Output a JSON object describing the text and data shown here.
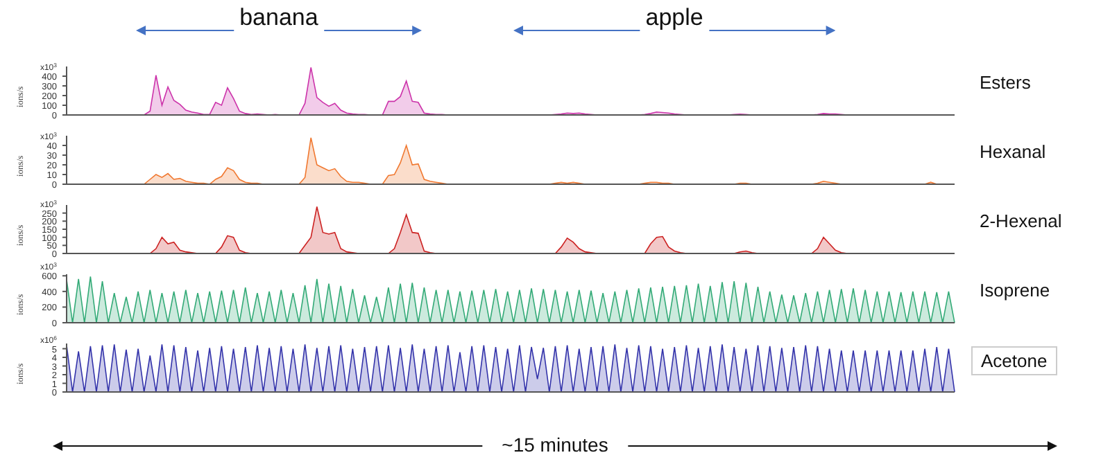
{
  "chart_data": [
    {
      "type": "area",
      "ylabel": "ions/s",
      "annotations": [
        "banana",
        "apple",
        "x10$^{3}$"
      ],
      "tick_labels": "y",
      "ylim": [
        0,
        500
      ],
      "yticks": [
        0,
        100,
        200,
        300,
        400
      ],
      "categories": [
        null,
        null,
        null,
        null,
        null,
        null,
        null,
        null,
        null,
        null,
        null,
        null,
        null,
        null,
        null,
        null,
        null,
        null,
        null,
        null,
        null,
        null,
        null,
        null,
        null,
        null,
        null,
        null,
        null,
        null,
        null,
        null,
        null,
        null,
        null,
        null,
        null,
        null,
        null,
        null,
        null,
        null,
        null,
        null,
        null,
        null,
        null,
        null,
        null,
        null,
        null,
        null,
        null,
        null,
        null,
        null,
        null,
        null,
        null,
        null,
        null,
        null,
        null,
        null,
        null,
        null,
        null,
        null,
        null,
        null,
        null,
        null,
        null,
        null,
        null,
        null,
        null,
        null,
        null,
        null,
        null,
        null,
        null,
        null,
        null,
        null,
        null,
        null,
        null,
        null,
        null,
        null,
        null,
        null,
        null,
        null,
        null,
        null,
        null,
        null,
        null,
        null,
        null,
        null,
        null,
        null,
        null,
        null,
        null,
        null,
        null,
        null,
        null,
        null,
        null,
        null,
        null,
        null,
        null,
        null,
        null,
        null,
        null,
        null,
        null,
        null,
        null,
        null,
        null,
        null,
        null,
        null,
        null,
        null,
        null,
        null,
        null,
        null,
        null,
        null,
        null,
        null,
        null,
        null,
        null,
        null,
        null,
        null,
        null,
        null
      ],
      "series": [
        {
          "name": "Esters",
          "color": "#cc33aa",
          "values": [
            0,
            0,
            0,
            0,
            0,
            0,
            0,
            0,
            0,
            0,
            0,
            0,
            0,
            0,
            40,
            410,
            100,
            290,
            150,
            110,
            50,
            30,
            20,
            5,
            5,
            130,
            100,
            280,
            170,
            40,
            15,
            5,
            10,
            5,
            0,
            5,
            0,
            0,
            0,
            0,
            120,
            490,
            180,
            130,
            90,
            120,
            50,
            20,
            10,
            5,
            5,
            0,
            0,
            0,
            140,
            140,
            190,
            350,
            140,
            130,
            20,
            10,
            5,
            5,
            0,
            0,
            0,
            0,
            0,
            0,
            0,
            0,
            0,
            0,
            0,
            0,
            0,
            0,
            0,
            0,
            0,
            0,
            5,
            10,
            20,
            15,
            20,
            10,
            5,
            0,
            0,
            0,
            0,
            0,
            0,
            0,
            0,
            5,
            15,
            30,
            25,
            20,
            10,
            5,
            0,
            0,
            0,
            0,
            0,
            0,
            0,
            0,
            5,
            8,
            5,
            0,
            0,
            0,
            0,
            0,
            0,
            0,
            0,
            0,
            0,
            0,
            5,
            15,
            10,
            10,
            5,
            0,
            0,
            0,
            0,
            0,
            0,
            0,
            0,
            0,
            0,
            0,
            0,
            0,
            0,
            0,
            0,
            0,
            0,
            0
          ]
        }
      ]
    },
    {
      "type": "area",
      "ylabel": "ions/s",
      "annotations": [
        "x10$^{3}$"
      ],
      "tick_labels": "y",
      "ylim": [
        0,
        50
      ],
      "yticks": [
        0,
        10,
        20,
        30,
        40
      ],
      "categories": [
        null,
        null,
        null,
        null,
        null,
        null,
        null,
        null,
        null,
        null,
        null,
        null,
        null,
        null,
        null,
        null,
        null,
        null,
        null,
        null,
        null,
        null,
        null,
        null,
        null,
        null,
        null,
        null,
        null,
        null,
        null,
        null,
        null,
        null,
        null,
        null,
        null,
        null,
        null,
        null,
        null,
        null,
        null,
        null,
        null,
        null,
        null,
        null,
        null,
        null,
        null,
        null,
        null,
        null,
        null,
        null,
        null,
        null,
        null,
        null,
        null,
        null,
        null,
        null,
        null,
        null,
        null,
        null,
        null,
        null,
        null,
        null,
        null,
        null,
        null,
        null,
        null,
        null,
        null,
        null,
        null,
        null,
        null,
        null,
        null,
        null,
        null,
        null,
        null,
        null,
        null,
        null,
        null,
        null,
        null,
        null,
        null,
        null,
        null,
        null,
        null,
        null,
        null,
        null,
        null,
        null,
        null,
        null,
        null,
        null,
        null,
        null,
        null,
        null,
        null,
        null,
        null,
        null,
        null,
        null,
        null,
        null,
        null,
        null,
        null,
        null,
        null,
        null,
        null,
        null,
        null,
        null,
        null,
        null,
        null,
        null,
        null,
        null,
        null,
        null,
        null,
        null,
        null,
        null,
        null,
        null,
        null,
        null,
        null,
        null
      ],
      "series": [
        {
          "name": "Hexanal",
          "color": "#f07830",
          "values": [
            0,
            0,
            0,
            0,
            0,
            0,
            0,
            0,
            0,
            0,
            0,
            0,
            0,
            0,
            5,
            10,
            7,
            11,
            5,
            6,
            3,
            2,
            1,
            1,
            0,
            5,
            8,
            17,
            14,
            5,
            2,
            1,
            1,
            0,
            0,
            0,
            0,
            0,
            0,
            0,
            7,
            48,
            20,
            17,
            14,
            16,
            8,
            3,
            2,
            2,
            1,
            0,
            0,
            0,
            9,
            10,
            22,
            40,
            20,
            21,
            5,
            3,
            2,
            1,
            0,
            0,
            0,
            0,
            0,
            0,
            0,
            0,
            0,
            0,
            0,
            0,
            0,
            0,
            0,
            0,
            0,
            0,
            1,
            2,
            1,
            2,
            1,
            0,
            0,
            0,
            0,
            0,
            0,
            0,
            0,
            0,
            0,
            1,
            2,
            2,
            1,
            1,
            0,
            0,
            0,
            0,
            0,
            0,
            0,
            0,
            0,
            0,
            0,
            1,
            1,
            0,
            0,
            0,
            0,
            0,
            0,
            0,
            0,
            0,
            0,
            0,
            1,
            3,
            2,
            1,
            0,
            0,
            0,
            0,
            0,
            0,
            0,
            0,
            0,
            0,
            0,
            0,
            0,
            0,
            0,
            2,
            0,
            0,
            0,
            0
          ]
        }
      ]
    },
    {
      "type": "area",
      "ylabel": "ions/s",
      "annotations": [
        "x10$^{3}$"
      ],
      "tick_labels": "y",
      "ylim": [
        0,
        300
      ],
      "yticks": [
        0,
        50,
        100,
        150,
        200,
        250
      ],
      "categories": [
        null,
        null,
        null,
        null,
        null,
        null,
        null,
        null,
        null,
        null,
        null,
        null,
        null,
        null,
        null,
        null,
        null,
        null,
        null,
        null,
        null,
        null,
        null,
        null,
        null,
        null,
        null,
        null,
        null,
        null,
        null,
        null,
        null,
        null,
        null,
        null,
        null,
        null,
        null,
        null,
        null,
        null,
        null,
        null,
        null,
        null,
        null,
        null,
        null,
        null,
        null,
        null,
        null,
        null,
        null,
        null,
        null,
        null,
        null,
        null,
        null,
        null,
        null,
        null,
        null,
        null,
        null,
        null,
        null,
        null,
        null,
        null,
        null,
        null,
        null,
        null,
        null,
        null,
        null,
        null,
        null,
        null,
        null,
        null,
        null,
        null,
        null,
        null,
        null,
        null,
        null,
        null,
        null,
        null,
        null,
        null,
        null,
        null,
        null,
        null,
        null,
        null,
        null,
        null,
        null,
        null,
        null,
        null,
        null,
        null,
        null,
        null,
        null,
        null,
        null,
        null,
        null,
        null,
        null,
        null,
        null,
        null,
        null,
        null,
        null,
        null,
        null,
        null,
        null,
        null,
        null,
        null,
        null,
        null,
        null,
        null,
        null,
        null,
        null,
        null,
        null,
        null,
        null,
        null,
        null,
        null,
        null,
        null,
        null,
        null
      ],
      "series": [
        {
          "name": "2-Hexenal",
          "color": "#cc2222",
          "values": [
            0,
            0,
            0,
            0,
            0,
            0,
            0,
            0,
            0,
            0,
            0,
            0,
            0,
            0,
            0,
            30,
            100,
            60,
            70,
            20,
            10,
            5,
            0,
            0,
            0,
            0,
            40,
            110,
            100,
            20,
            5,
            0,
            0,
            0,
            0,
            0,
            0,
            0,
            0,
            0,
            50,
            100,
            290,
            130,
            120,
            130,
            30,
            10,
            5,
            0,
            0,
            0,
            0,
            0,
            0,
            30,
            130,
            240,
            130,
            125,
            15,
            5,
            0,
            0,
            0,
            0,
            0,
            0,
            0,
            0,
            0,
            0,
            0,
            0,
            0,
            0,
            0,
            0,
            0,
            0,
            0,
            0,
            0,
            40,
            95,
            70,
            30,
            10,
            5,
            0,
            0,
            0,
            0,
            0,
            0,
            0,
            0,
            0,
            60,
            100,
            105,
            40,
            15,
            5,
            0,
            0,
            0,
            0,
            0,
            0,
            0,
            0,
            0,
            10,
            15,
            5,
            0,
            0,
            0,
            0,
            0,
            0,
            0,
            0,
            0,
            0,
            30,
            100,
            60,
            20,
            5,
            0,
            0,
            0,
            0,
            0,
            0,
            0,
            0,
            0,
            0,
            0,
            0,
            0,
            0,
            0,
            0,
            0,
            0,
            0
          ]
        }
      ]
    },
    {
      "type": "area",
      "ylabel": "ions/s",
      "annotations": [
        "x10$^{3}$"
      ],
      "tick_labels": "y",
      "ylim": [
        0,
        620
      ],
      "yticks": [
        0,
        200,
        400,
        600
      ],
      "categories": [
        null,
        null,
        null,
        null,
        null,
        null,
        null,
        null,
        null,
        null,
        null,
        null,
        null,
        null,
        null,
        null,
        null,
        null,
        null,
        null,
        null,
        null,
        null,
        null,
        null,
        null,
        null,
        null,
        null,
        null,
        null,
        null,
        null,
        null,
        null,
        null,
        null,
        null,
        null,
        null,
        null,
        null,
        null,
        null,
        null,
        null,
        null,
        null,
        null,
        null,
        null,
        null,
        null,
        null,
        null,
        null,
        null,
        null,
        null,
        null,
        null,
        null,
        null,
        null,
        null,
        null,
        null,
        null,
        null,
        null,
        null,
        null,
        null,
        null,
        null,
        null,
        null,
        null,
        null,
        null,
        null,
        null,
        null,
        null,
        null,
        null,
        null,
        null,
        null,
        null,
        null,
        null,
        null,
        null,
        null,
        null,
        null,
        null,
        null,
        null,
        null,
        null,
        null,
        null,
        null,
        null,
        null,
        null,
        null,
        null,
        null,
        null,
        null,
        null,
        null,
        null,
        null,
        null,
        null,
        null,
        null,
        null,
        null,
        null,
        null,
        null,
        null,
        null,
        null,
        null,
        null,
        null,
        null,
        null,
        null,
        null,
        null,
        null,
        null,
        null,
        null,
        null,
        null,
        null,
        null,
        null,
        null,
        null,
        null,
        null
      ],
      "series": [
        {
          "name": "Isoprene",
          "color": "#33aa77",
          "values": [
            550,
            0,
            560,
            0,
            590,
            0,
            530,
            0,
            380,
            0,
            330,
            0,
            400,
            0,
            420,
            0,
            380,
            0,
            400,
            0,
            420,
            0,
            380,
            0,
            400,
            0,
            410,
            0,
            420,
            0,
            450,
            0,
            380,
            0,
            400,
            0,
            420,
            0,
            380,
            0,
            480,
            0,
            560,
            0,
            500,
            0,
            470,
            0,
            430,
            0,
            350,
            0,
            330,
            0,
            450,
            0,
            500,
            0,
            510,
            0,
            450,
            0,
            420,
            0,
            420,
            0,
            400,
            0,
            410,
            0,
            420,
            0,
            430,
            0,
            400,
            0,
            420,
            0,
            440,
            0,
            430,
            0,
            420,
            0,
            400,
            0,
            420,
            0,
            410,
            0,
            380,
            0,
            400,
            0,
            420,
            0,
            440,
            0,
            450,
            0,
            460,
            0,
            470,
            0,
            480,
            0,
            500,
            0,
            470,
            0,
            520,
            0,
            530,
            0,
            510,
            0,
            460,
            0,
            400,
            0,
            360,
            0,
            350,
            0,
            380,
            0,
            400,
            0,
            420,
            0,
            430,
            0,
            440,
            0,
            420,
            0,
            400,
            0,
            400,
            0,
            390,
            0,
            400,
            0,
            400,
            0,
            390,
            0,
            400,
            0
          ]
        }
      ]
    },
    {
      "type": "area",
      "ylabel": "ions/s",
      "annotations": [
        "~15 minutes",
        "x10$^{6}$"
      ],
      "tick_labels": "y",
      "ylim": [
        0,
        5.6
      ],
      "yticks": [
        0,
        1,
        2,
        3,
        4,
        5
      ],
      "categories": [
        null,
        null,
        null,
        null,
        null,
        null,
        null,
        null,
        null,
        null,
        null,
        null,
        null,
        null,
        null,
        null,
        null,
        null,
        null,
        null,
        null,
        null,
        null,
        null,
        null,
        null,
        null,
        null,
        null,
        null,
        null,
        null,
        null,
        null,
        null,
        null,
        null,
        null,
        null,
        null,
        null,
        null,
        null,
        null,
        null,
        null,
        null,
        null,
        null,
        null,
        null,
        null,
        null,
        null,
        null,
        null,
        null,
        null,
        null,
        null,
        null,
        null,
        null,
        null,
        null,
        null,
        null,
        null,
        null,
        null,
        null,
        null,
        null,
        null,
        null,
        null,
        null,
        null,
        null,
        null,
        null,
        null,
        null,
        null,
        null,
        null,
        null,
        null,
        null,
        null,
        null,
        null,
        null,
        null,
        null,
        null,
        null,
        null,
        null,
        null,
        null,
        null,
        null,
        null,
        null,
        null,
        null,
        null,
        null,
        null,
        null,
        null,
        null,
        null,
        null,
        null,
        null,
        null,
        null,
        null,
        null,
        null,
        null,
        null,
        null,
        null,
        null,
        null,
        null,
        null,
        null,
        null,
        null,
        null,
        null,
        null,
        null,
        null,
        null,
        null,
        null,
        null,
        null,
        null,
        null,
        null,
        null,
        null,
        null,
        null
      ],
      "series": [
        {
          "name": "Acetone",
          "color": "#3333aa",
          "values": [
            5.4,
            0,
            4.7,
            0,
            5.3,
            0,
            5.4,
            0,
            5.5,
            0,
            4.9,
            0,
            5.0,
            0,
            4.2,
            0,
            5.5,
            0,
            5.4,
            0,
            5.2,
            0,
            4.8,
            0,
            5.1,
            0,
            5.3,
            0,
            5.0,
            0,
            5.2,
            0,
            5.4,
            0,
            5.1,
            0,
            5.3,
            0,
            5.0,
            0,
            5.5,
            0,
            5.1,
            0,
            5.3,
            0,
            5.4,
            0,
            5.0,
            0,
            5.2,
            0,
            5.3,
            0,
            5.4,
            0,
            5.1,
            0,
            5.5,
            0,
            5.0,
            0,
            5.3,
            0,
            5.4,
            0,
            4.6,
            0,
            5.3,
            0,
            5.4,
            0,
            5.2,
            0,
            5.0,
            0,
            5.4,
            0,
            5.2,
            1.5,
            5.1,
            0,
            5.3,
            0,
            5.4,
            0,
            5.0,
            0,
            5.2,
            0,
            5.3,
            0,
            5.5,
            0,
            5.1,
            0,
            5.4,
            0,
            5.3,
            0,
            5.0,
            0,
            5.2,
            0,
            5.4,
            0,
            5.1,
            0,
            5.3,
            0,
            5.5,
            0,
            5.2,
            0,
            5.0,
            0,
            5.4,
            0,
            5.3,
            0,
            5.1,
            0,
            5.2,
            0,
            5.4,
            0,
            5.3,
            0,
            5.0,
            0,
            4.8,
            0,
            4.8,
            0,
            4.8,
            0,
            4.8,
            0,
            4.8,
            0,
            4.8,
            0,
            4.8,
            0,
            5.0,
            0,
            5.2,
            0,
            5.0,
            0
          ]
        }
      ]
    }
  ]
}
